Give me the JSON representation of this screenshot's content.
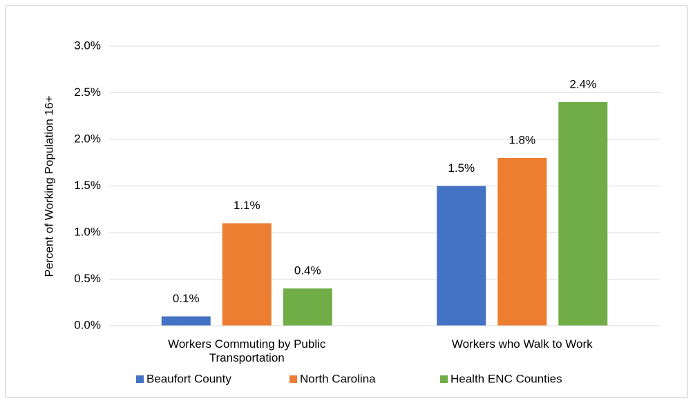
{
  "chart_data": {
    "type": "bar",
    "y_label": "Percent of Working Population 16+",
    "categories": [
      "Workers Commuting by Public Transportation",
      "Workers who Walk to Work"
    ],
    "series": [
      {
        "name": "Beaufort County",
        "color": "#4472c4",
        "values": [
          0.1,
          1.5
        ],
        "value_labels": [
          "0.1%",
          "1.5%"
        ]
      },
      {
        "name": "North Carolina",
        "color": "#ed7d31",
        "values": [
          1.1,
          1.8
        ],
        "value_labels": [
          "1.1%",
          "1.8%"
        ]
      },
      {
        "name": "Health ENC Counties",
        "color": "#70ad47",
        "values": [
          0.4,
          2.4
        ],
        "value_labels": [
          "0.4%",
          "2.4%"
        ]
      }
    ],
    "ylim": [
      0,
      3
    ],
    "yticks": [
      {
        "value": 0,
        "label": "0.0%"
      },
      {
        "value": 0.5,
        "label": "0.5%"
      },
      {
        "value": 1,
        "label": "1.0%"
      },
      {
        "value": 1.5,
        "label": "1.5%"
      },
      {
        "value": 2,
        "label": "2.0%"
      },
      {
        "value": 2.5,
        "label": "2.5%"
      },
      {
        "value": 3,
        "label": "3.0%"
      }
    ],
    "grid": true,
    "legend": "bottom"
  }
}
